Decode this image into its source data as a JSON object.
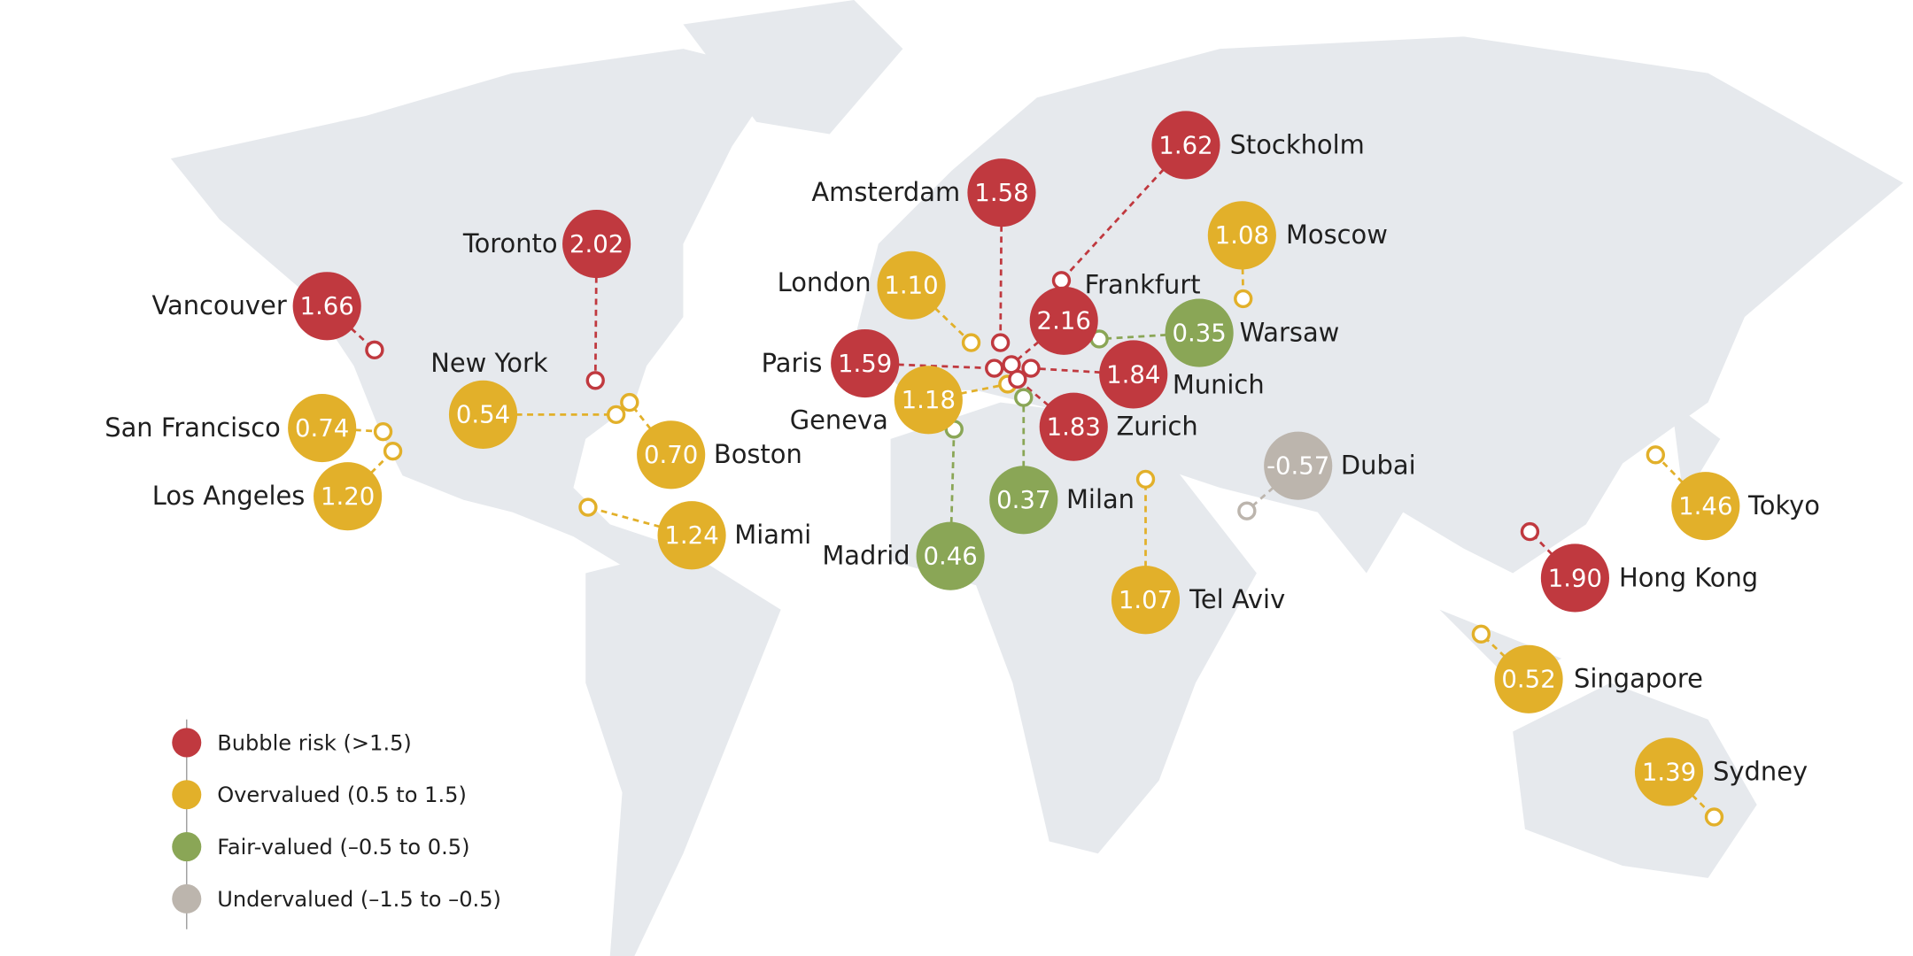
{
  "legend": [
    {
      "label": "Bubble risk (>1.5)",
      "color": "#c0393f"
    },
    {
      "label": "Overvalued (0.5 to 1.5)",
      "color": "#e2b02a"
    },
    {
      "label": "Fair-valued (–0.5 to 0.5)",
      "color": "#8aa656"
    },
    {
      "label": "Undervalued (–1.5 to –0.5)",
      "color": "#bcb5ad"
    }
  ],
  "cities": [
    {
      "name": "Vancouver",
      "value": 1.66,
      "category": 0
    },
    {
      "name": "Toronto",
      "value": 2.02,
      "category": 0
    },
    {
      "name": "New York",
      "value": 0.54,
      "category": 1
    },
    {
      "name": "San Francisco",
      "value": 0.74,
      "category": 1
    },
    {
      "name": "Los Angeles",
      "value": 1.2,
      "value_label": "1.20",
      "category": 1
    },
    {
      "name": "Boston",
      "value": 0.7,
      "value_label": "0.70",
      "category": 1
    },
    {
      "name": "Miami",
      "value": 1.24,
      "category": 1
    },
    {
      "name": "Amsterdam",
      "value": 1.58,
      "category": 0
    },
    {
      "name": "Stockholm",
      "value": 1.62,
      "category": 0
    },
    {
      "name": "Moscow",
      "value": 1.08,
      "category": 1
    },
    {
      "name": "London",
      "value": 1.1,
      "value_label": "1.10",
      "category": 1
    },
    {
      "name": "Frankfurt",
      "value": 2.16,
      "category": 0
    },
    {
      "name": "Warsaw",
      "value": 0.35,
      "category": 2
    },
    {
      "name": "Paris",
      "value": 1.59,
      "category": 0
    },
    {
      "name": "Munich",
      "value": 1.84,
      "category": 0
    },
    {
      "name": "Geneva",
      "value": 1.18,
      "category": 1
    },
    {
      "name": "Zurich",
      "value": 1.83,
      "category": 0
    },
    {
      "name": "Madrid",
      "value": 0.46,
      "category": 2
    },
    {
      "name": "Milan",
      "value": 0.37,
      "category": 2
    },
    {
      "name": "Tel Aviv",
      "value": 1.07,
      "category": 1
    },
    {
      "name": "Dubai",
      "value": -0.57,
      "category": 3
    },
    {
      "name": "Tokyo",
      "value": 1.46,
      "category": 1
    },
    {
      "name": "Hong Kong",
      "value": 1.9,
      "value_label": "1.90",
      "category": 0
    },
    {
      "name": "Singapore",
      "value": 0.52,
      "category": 1
    },
    {
      "name": "Sydney",
      "value": 1.39,
      "category": 1
    }
  ]
}
